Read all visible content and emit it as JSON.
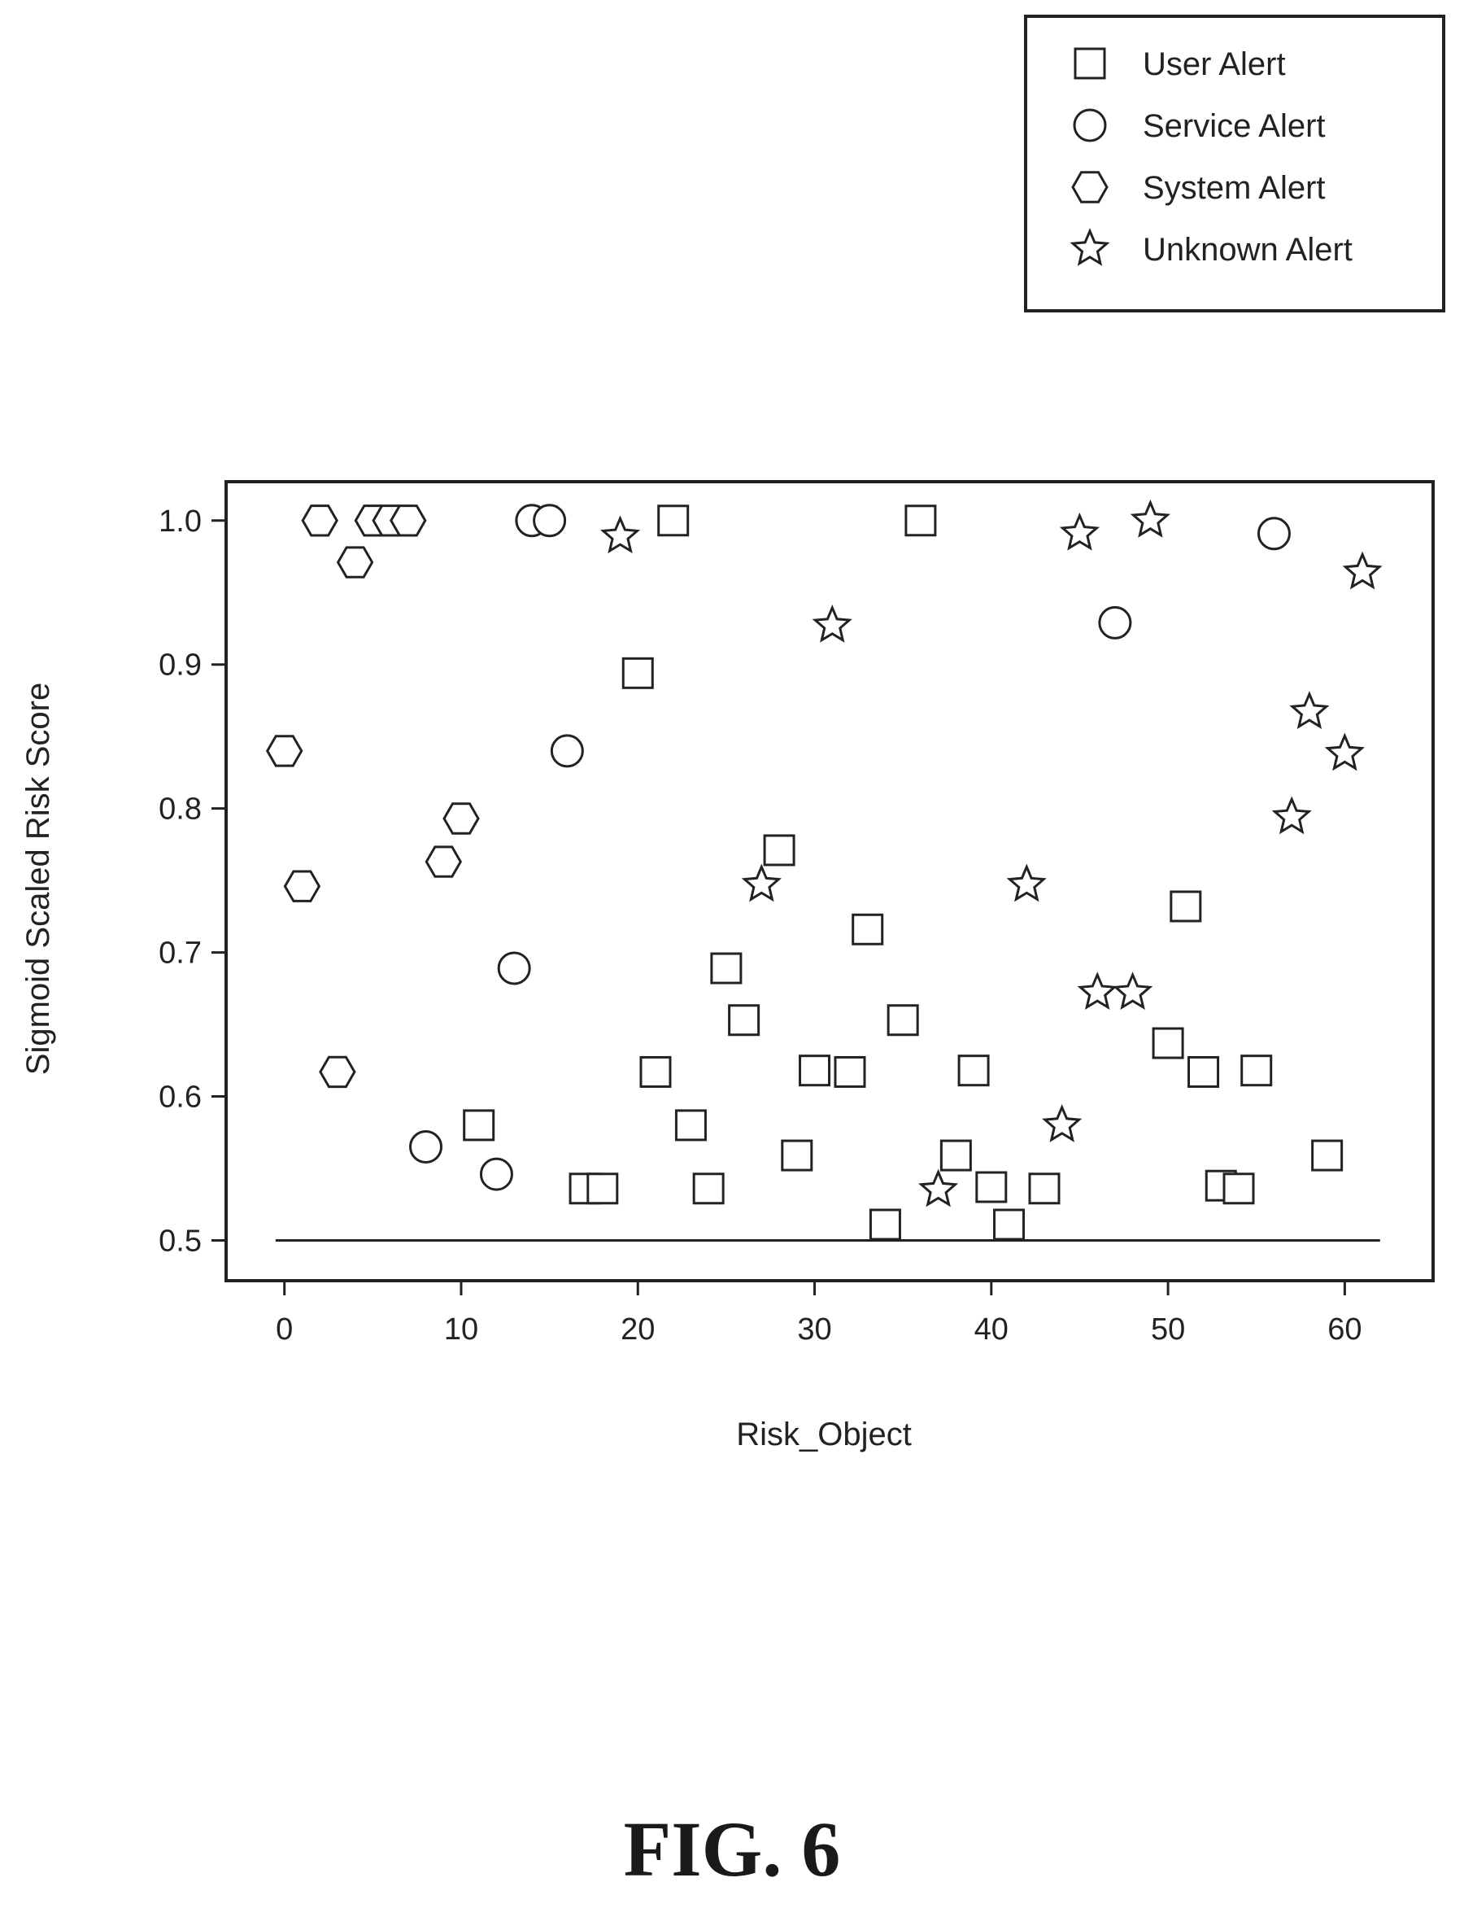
{
  "figure_caption": "FIG. 6",
  "legend": {
    "entries": [
      {
        "label": "User Alert",
        "marker": "square"
      },
      {
        "label": "Service Alert",
        "marker": "circle"
      },
      {
        "label": "System Alert",
        "marker": "hexagon"
      },
      {
        "label": "Unknown Alert",
        "marker": "star"
      }
    ]
  },
  "chart_data": {
    "type": "scatter",
    "title": "",
    "xlabel": "Risk_Object",
    "ylabel": "Sigmoid Scaled Risk Score",
    "xlim": [
      -3.3,
      65
    ],
    "ylim": [
      0.472,
      1.027
    ],
    "xticks": [
      0,
      10,
      20,
      30,
      40,
      50,
      60
    ],
    "xtick_labels": [
      "0",
      "10",
      "20",
      "30",
      "40",
      "50",
      "60"
    ],
    "yticks": [
      0.5,
      0.6,
      0.7,
      0.8,
      0.9,
      1.0
    ],
    "ytick_labels": [
      "0.5",
      "0.6",
      "0.7",
      "0.8",
      "0.9",
      "1.0"
    ],
    "grid": false,
    "legend_position": "top-right, outside plot",
    "threshold_line": {
      "y": 0.5,
      "x_range": [
        -0.5,
        62
      ]
    },
    "series": [
      {
        "name": "User Alert",
        "marker": "square",
        "points": [
          [
            11,
            0.58
          ],
          [
            17,
            0.536
          ],
          [
            18,
            0.536
          ],
          [
            20,
            0.894
          ],
          [
            21,
            0.617
          ],
          [
            22,
            1.0
          ],
          [
            23,
            0.58
          ],
          [
            24,
            0.536
          ],
          [
            25,
            0.689
          ],
          [
            26,
            0.653
          ],
          [
            28,
            0.771
          ],
          [
            29,
            0.559
          ],
          [
            30,
            0.618
          ],
          [
            32,
            0.617
          ],
          [
            33,
            0.716
          ],
          [
            34,
            0.511
          ],
          [
            35,
            0.653
          ],
          [
            36,
            1.0
          ],
          [
            38,
            0.559
          ],
          [
            39,
            0.618
          ],
          [
            40,
            0.537
          ],
          [
            41,
            0.511
          ],
          [
            43,
            0.536
          ],
          [
            50,
            0.637
          ],
          [
            51,
            0.732
          ],
          [
            52,
            0.617
          ],
          [
            53,
            0.538
          ],
          [
            54,
            0.536
          ],
          [
            55,
            0.618
          ],
          [
            59,
            0.559
          ]
        ]
      },
      {
        "name": "Service Alert",
        "marker": "circle",
        "points": [
          [
            8,
            0.565
          ],
          [
            12,
            0.546
          ],
          [
            13,
            0.689
          ],
          [
            14,
            1.0
          ],
          [
            15,
            1.0
          ],
          [
            16,
            0.84
          ],
          [
            47,
            0.929
          ],
          [
            56,
            0.991
          ]
        ]
      },
      {
        "name": "System Alert",
        "marker": "hexagon",
        "points": [
          [
            0,
            0.84
          ],
          [
            1,
            0.746
          ],
          [
            2,
            1.0
          ],
          [
            3,
            0.617
          ],
          [
            4,
            0.971
          ],
          [
            5,
            1.0
          ],
          [
            6,
            1.0
          ],
          [
            7,
            1.0
          ],
          [
            9,
            0.763
          ],
          [
            10,
            0.793
          ]
        ]
      },
      {
        "name": "Unknown Alert",
        "marker": "star",
        "points": [
          [
            19,
            0.989
          ],
          [
            27,
            0.747
          ],
          [
            31,
            0.927
          ],
          [
            37,
            0.535
          ],
          [
            42,
            0.747
          ],
          [
            44,
            0.58
          ],
          [
            45,
            0.991
          ],
          [
            46,
            0.672
          ],
          [
            48,
            0.672
          ],
          [
            49,
            1.0
          ],
          [
            57,
            0.794
          ],
          [
            58,
            0.867
          ],
          [
            60,
            0.838
          ],
          [
            61,
            0.964
          ]
        ]
      }
    ]
  }
}
